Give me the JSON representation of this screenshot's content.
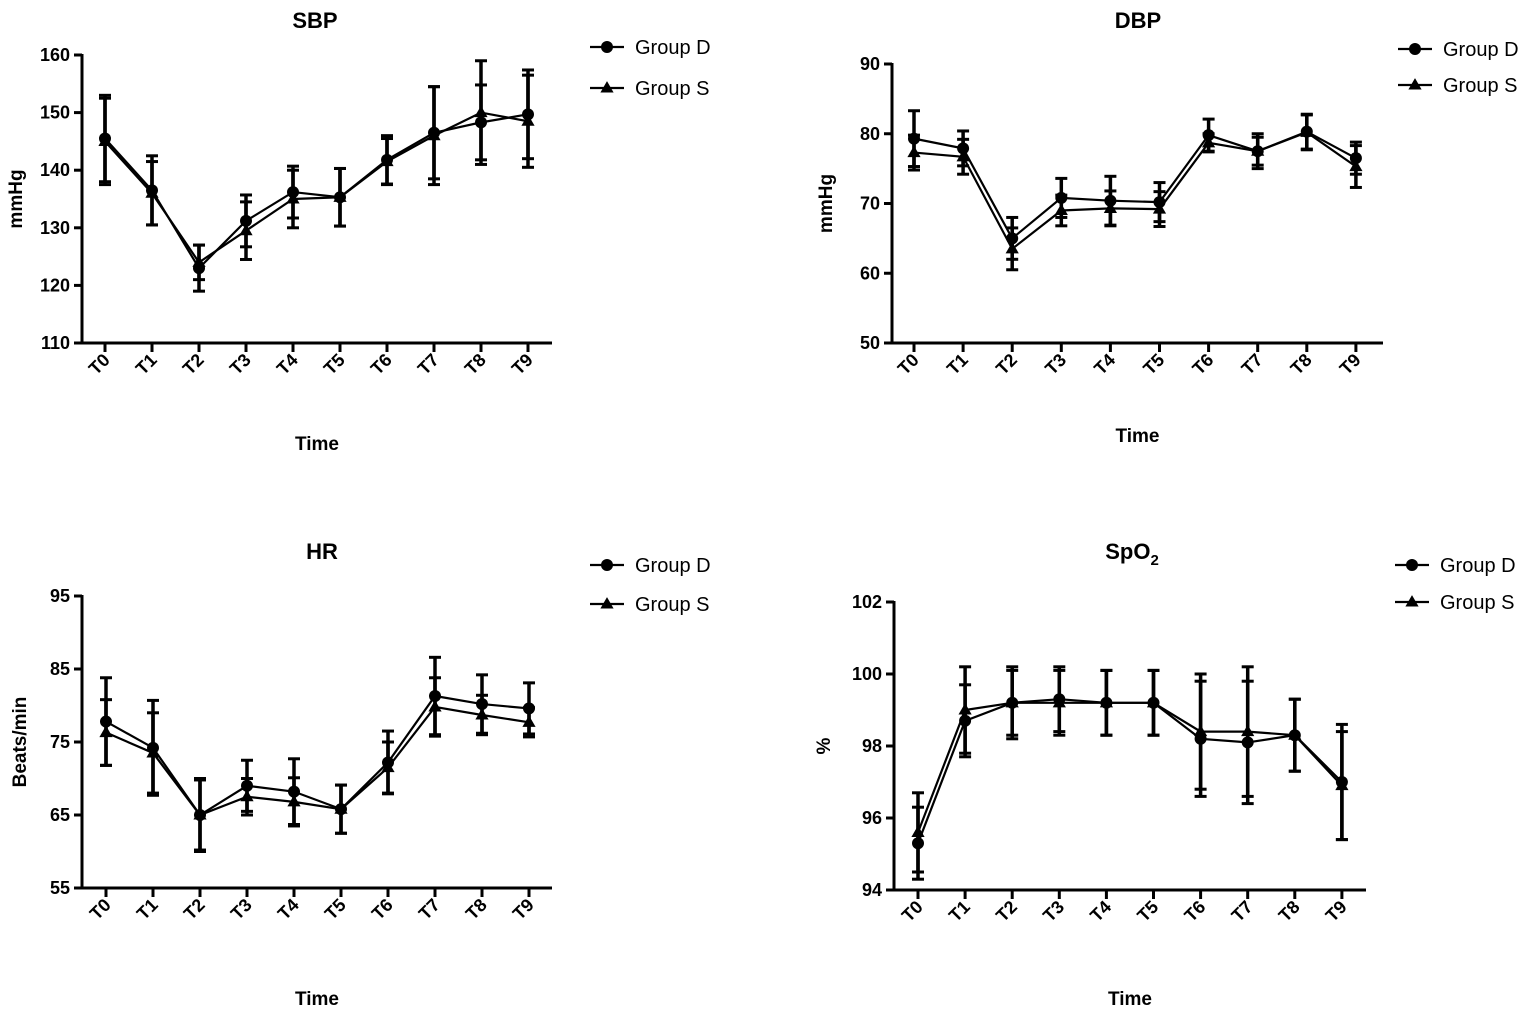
{
  "chart_data": [
    {
      "type": "line",
      "title": "SBP",
      "xlabel": "Time",
      "ylabel": "mmHg",
      "ylim": [
        110,
        160
      ],
      "yticks": [
        110,
        120,
        130,
        140,
        150,
        160
      ],
      "categories": [
        "T0",
        "T1",
        "T2",
        "T3",
        "T4",
        "T5",
        "T6",
        "T7",
        "T8",
        "T9"
      ],
      "legend_position": "top-right",
      "series": [
        {
          "name": "Group D",
          "marker": "circle",
          "values": [
            145.5,
            136.5,
            123,
            131.2,
            136.2,
            135.3,
            141.8,
            146.5,
            148.3,
            149.7
          ],
          "error": [
            7.5,
            6,
            4,
            4.5,
            4.5,
            5,
            4.2,
            8,
            6.5,
            7.7
          ]
        },
        {
          "name": "Group S",
          "marker": "triangle",
          "values": [
            145,
            136,
            124,
            129.5,
            135,
            135.3,
            141.5,
            146,
            150,
            148.5
          ],
          "error": [
            7.5,
            5.5,
            3,
            5,
            5,
            5,
            4,
            8.5,
            9,
            8
          ]
        }
      ]
    },
    {
      "type": "line",
      "title": "DBP",
      "xlabel": "Time",
      "ylabel": "mmHg",
      "ylim": [
        50,
        90
      ],
      "yticks": [
        50,
        60,
        70,
        80,
        90
      ],
      "categories": [
        "T0",
        "T1",
        "T2",
        "T3",
        "T4",
        "T5",
        "T6",
        "T7",
        "T8",
        "T9"
      ],
      "legend_position": "top-right",
      "series": [
        {
          "name": "Group D",
          "marker": "circle",
          "values": [
            79.3,
            77.9,
            65,
            70.8,
            70.4,
            70.2,
            79.8,
            77.5,
            80.3,
            76.5
          ],
          "error": [
            4,
            2.5,
            3,
            2.8,
            3.5,
            2.8,
            2.3,
            2.5,
            2.5,
            2.3
          ]
        },
        {
          "name": "Group S",
          "marker": "triangle",
          "values": [
            77.3,
            76.7,
            63.5,
            69,
            69.3,
            69.2,
            78.7,
            77.5,
            80.2,
            75.3
          ],
          "error": [
            2.5,
            2.5,
            3,
            2.2,
            2.5,
            2.5,
            1.3,
            2,
            2.5,
            3
          ]
        }
      ]
    },
    {
      "type": "line",
      "title": "HR",
      "xlabel": "Time",
      "ylabel": "Beats/min",
      "ylim": [
        55,
        95
      ],
      "yticks": [
        55,
        65,
        75,
        85,
        95
      ],
      "categories": [
        "T0",
        "T1",
        "T2",
        "T3",
        "T4",
        "T5",
        "T6",
        "T7",
        "T8",
        "T9"
      ],
      "legend_position": "top-right",
      "series": [
        {
          "name": "Group D",
          "marker": "circle",
          "values": [
            77.8,
            74.2,
            65,
            69,
            68.2,
            65.8,
            72.2,
            81.3,
            80.2,
            79.6
          ],
          "error": [
            6,
            6.5,
            5,
            3.5,
            4.5,
            3.3,
            4.3,
            5.3,
            4,
            3.5
          ]
        },
        {
          "name": "Group S",
          "marker": "triangle",
          "values": [
            76.3,
            73.5,
            65,
            67.5,
            66.8,
            65.8,
            71.5,
            79.8,
            78.7,
            77.7
          ],
          "error": [
            4.5,
            5.5,
            4.8,
            2.5,
            3.3,
            3.3,
            3.5,
            4,
            2.7,
            2
          ]
        }
      ]
    },
    {
      "type": "line",
      "title": "SpO",
      "title_subscript": "2",
      "xlabel": "Time",
      "ylabel": "%",
      "ylim": [
        94,
        102
      ],
      "yticks": [
        94,
        96,
        98,
        100,
        102
      ],
      "categories": [
        "T0",
        "T1",
        "T2",
        "T3",
        "T4",
        "T5",
        "T6",
        "T7",
        "T8",
        "T9"
      ],
      "legend_position": "top-right",
      "series": [
        {
          "name": "Group D",
          "marker": "circle",
          "values": [
            95.3,
            98.7,
            99.2,
            99.3,
            99.2,
            99.2,
            98.2,
            98.1,
            98.3,
            97
          ],
          "error": [
            1,
            1,
            1,
            0.9,
            0.9,
            0.9,
            1.6,
            1.7,
            1,
            1.6
          ]
        },
        {
          "name": "Group S",
          "marker": "triangle",
          "values": [
            95.6,
            99,
            99.2,
            99.2,
            99.2,
            99.2,
            98.4,
            98.4,
            98.3,
            96.9
          ],
          "error": [
            1.1,
            1.2,
            0.9,
            0.9,
            0.9,
            0.9,
            1.6,
            1.8,
            1,
            1.5
          ]
        }
      ]
    }
  ]
}
